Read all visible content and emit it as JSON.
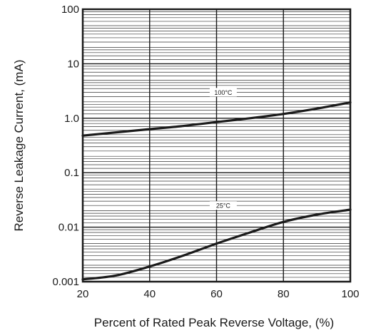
{
  "chart_data": {
    "type": "line",
    "title": "",
    "xlabel": "Percent of Rated Peak Reverse Voltage, (%)",
    "ylabel": "Reverse Leakage Current, (mA)",
    "xlim": [
      20,
      100
    ],
    "ylim": [
      0.001,
      100
    ],
    "yscale": "log",
    "grid": true,
    "legend": "none",
    "x_ticks": [
      20,
      40,
      60,
      80,
      100
    ],
    "x_tick_labels": [
      "20",
      "40",
      "60",
      "80",
      "100"
    ],
    "y_ticks": [
      0.001,
      0.01,
      0.1,
      1,
      10,
      100
    ],
    "y_tick_labels": [
      "0.001",
      "0.01",
      "0.1",
      "1.0",
      "10",
      "100"
    ],
    "series": [
      {
        "label": "100°C",
        "x": [
          20,
          30,
          40,
          50,
          60,
          70,
          80,
          90,
          100
        ],
        "y": [
          0.48,
          0.55,
          0.63,
          0.72,
          0.85,
          1.0,
          1.2,
          1.5,
          1.95
        ]
      },
      {
        "label": "25°C",
        "x": [
          20,
          30,
          40,
          50,
          60,
          70,
          80,
          90,
          100
        ],
        "y": [
          0.0011,
          0.0013,
          0.0019,
          0.003,
          0.005,
          0.008,
          0.0125,
          0.017,
          0.021
        ]
      }
    ]
  }
}
